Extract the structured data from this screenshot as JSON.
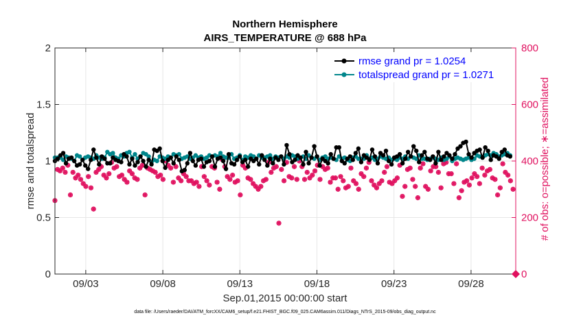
{
  "chart_data": {
    "type": "line",
    "title": "Northern Hemisphere",
    "subtitle": "AIRS_TEMPERATURE @ 688 hPa",
    "xlabel": "Sep.01,2015 00:00:00 start",
    "ylabel_left": "rmse and totalspread",
    "ylabel_right": "# of obs: o=possible; ∗=assimilated",
    "footnote": "data file: /Users/raeder/DAI/ATM_forcXX/CAM6_setup/f.e21.FHIST_BGC.f09_025.CAM6assim.011/Diags_NTrS_2015-09/obs_diag_output.nc",
    "xlim": [
      1.0,
      30.9
    ],
    "ylim_left": [
      0,
      2
    ],
    "ylim_right": [
      0,
      800
    ],
    "x_tick_values": [
      3,
      8,
      13,
      18,
      23,
      28
    ],
    "x_tick_labels": [
      "09/03",
      "09/08",
      "09/13",
      "09/18",
      "09/23",
      "09/28"
    ],
    "y_left_ticks": [
      0,
      0.5,
      1,
      1.5,
      2
    ],
    "y_left_tick_labels": [
      "0",
      "0.5",
      "1",
      "1.5",
      "2"
    ],
    "y_right_ticks": [
      0,
      200,
      400,
      600,
      800
    ],
    "y_right_tick_labels": [
      "0",
      "200",
      "400",
      "600",
      "800"
    ],
    "grid": true,
    "legend_position": "top-right",
    "series": [
      {
        "name": "rmse grand pr = 1.0254",
        "color": "#000000",
        "axis": "left",
        "marker": "filled-circle",
        "values": [
          1.0,
          1.02,
          1.05,
          1.07,
          0.98,
          1.02,
          1.03,
          1.0,
          0.96,
          0.97,
          1.01,
          0.96,
          0.93,
          1.01,
          1.1,
          1.03,
          0.97,
          1.04,
          1.02,
          0.98,
          0.98,
          1.03,
          1.01,
          1.0,
          0.99,
          1.06,
          1.04,
          0.97,
          1.02,
          0.96,
          0.99,
          1.04,
          1.0,
          0.95,
          1.01,
          0.97,
          1.1,
          1.09,
          1.11,
          1.0,
          0.94,
          1.01,
          1.03,
          0.98,
          1.04,
          1.01,
          0.91,
          0.92,
          0.98,
          1.07,
          1.0,
          0.96,
          1.01,
          1.02,
          0.95,
          0.99,
          1.0,
          1.04,
          0.95,
          1.02,
          1.03,
          1.0,
          0.93,
          1.06,
          0.98,
          0.97,
          1.01,
          1.04,
          0.99,
          1.01,
          0.95,
          1.02,
          1.0,
          1.02,
          0.97,
          1.05,
          1.01,
          0.96,
          1.02,
          0.98,
          1.03,
          1.01,
          1.04,
          0.97,
          1.14,
          1.06,
          0.99,
          1.01,
          1.05,
          1.03,
          0.97,
          1.08,
          0.98,
          1.03,
          1.13,
          1.04,
          0.96,
          1.02,
          1.0,
          0.98,
          1.06,
          1.02,
          1.12,
          1.12,
          1.0,
          0.98,
          1.02,
          1.04,
          1.01,
          1.07,
          1.11,
          0.99,
          1.05,
          1.03,
          1.01,
          1.1,
          1.04,
          0.98,
          1.07,
          1.05,
          1.09,
          1.0,
          0.97,
          1.03,
          1.04,
          1.06,
          0.98,
          1.02,
          1.08,
          1.04,
          1.13,
          1.09,
          0.99,
          1.05,
          1.08,
          1.02,
          1.01,
          1.04,
          0.98,
          1.08,
          1.01,
          1.04,
          1.07,
          1.05,
          1.02,
          1.06,
          1.11,
          1.13,
          1.16,
          1.17,
          1.06,
          1.03,
          1.07,
          1.09,
          1.1,
          1.03,
          1.12,
          1.09,
          1.01,
          1.05,
          1.04,
          1.02,
          1.08,
          1.1,
          1.05,
          1.04
        ],
        "x_start": 1.0,
        "x_step": 0.179
      },
      {
        "name": "totalspread grand pr = 1.0271",
        "color": "#00868b",
        "axis": "left",
        "marker": "filled-circle",
        "values": [
          1.03,
          1.03,
          1.03,
          1.01,
          1.04,
          1.03,
          1.02,
          1.0,
          1.05,
          1.04,
          1.01,
          1.03,
          1.04,
          1.03,
          1.02,
          1.05,
          1.03,
          1.02,
          1.03,
          1.08,
          1.06,
          1.07,
          1.03,
          1.02,
          1.05,
          1.04,
          1.07,
          1.08,
          1.03,
          1.06,
          1.02,
          1.04,
          1.07,
          1.06,
          1.04,
          0.99,
          1.01,
          1.0,
          1.04,
          1.03,
          1.02,
          1.04,
          1.03,
          1.06,
          1.05,
          1.06,
          1.02,
          1.03,
          1.04,
          1.02,
          1.03,
          1.05,
          1.03,
          1.04,
          1.02,
          1.03,
          1.05,
          1.04,
          1.05,
          1.04,
          1.07,
          1.04,
          1.03,
          1.03,
          1.06,
          1.02,
          1.03,
          1.05,
          1.01,
          1.04,
          1.03,
          1.05,
          1.04,
          1.02,
          1.05,
          1.03,
          1.03,
          1.04,
          1.05,
          1.02,
          1.04,
          1.03,
          1.04,
          1.02,
          1.04,
          1.03,
          1.05,
          1.04,
          1.02,
          1.03,
          1.04,
          1.02,
          1.05,
          1.03,
          1.02,
          1.04,
          1.01,
          1.03,
          1.04,
          1.02,
          1.03,
          1.02,
          1.01,
          1.04,
          1.02,
          1.03,
          1.01,
          1.0,
          1.03,
          1.04,
          1.02,
          1.02,
          1.02,
          1.05,
          1.02,
          1.03,
          1.01,
          1.02,
          1.04,
          1.03,
          1.02,
          1.03,
          1.01,
          1.02,
          1.01,
          1.03,
          1.02,
          1.04,
          1.02,
          1.04,
          1.03,
          1.02,
          1.05,
          1.02,
          1.02,
          1.01,
          1.02,
          1.03,
          1.02,
          1.01,
          1.03,
          1.01,
          1.02,
          1.04,
          1.0,
          1.02,
          1.03,
          1.02,
          1.01,
          1.02,
          1.03,
          1.01,
          1.02,
          1.05,
          1.04,
          1.03,
          1.05,
          1.06,
          1.05,
          1.07,
          1.06,
          1.04,
          1.05,
          1.06,
          1.07,
          1.05
        ],
        "x_start": 1.0,
        "x_step": 0.179
      },
      {
        "name": "# of obs possible / assimilated",
        "color": "#e0115f",
        "axis": "right",
        "marker": "circle-and-asterisk",
        "values": [
          260,
          370,
          365,
          375,
          360,
          385,
          280,
          360,
          340,
          350,
          335,
          320,
          310,
          345,
          305,
          230,
          360,
          370,
          380,
          350,
          340,
          355,
          395,
          375,
          380,
          345,
          350,
          335,
          325,
          365,
          355,
          340,
          335,
          375,
          385,
          280,
          375,
          370,
          365,
          360,
          345,
          350,
          335,
          400,
          385,
          375,
          325,
          380,
          340,
          330,
          355,
          345,
          330,
          330,
          320,
          325,
          310,
          380,
          345,
          330,
          315,
          380,
          375,
          325,
          300,
          405,
          380,
          345,
          335,
          350,
          325,
          330,
          280,
          385,
          375,
          340,
          335,
          320,
          310,
          300,
          310,
          330,
          335,
          395,
          360,
          375,
          380,
          180,
          370,
          330,
          395,
          345,
          340,
          380,
          335,
          400,
          380,
          335,
          360,
          340,
          350,
          365,
          385,
          335,
          380,
          370,
          375,
          325,
          340,
          340,
          300,
          345,
          330,
          305,
          310,
          375,
          330,
          320,
          300,
          355,
          345,
          375,
          395,
          330,
          315,
          305,
          320,
          330,
          360,
          380,
          325,
          320,
          330,
          340,
          385,
          275,
          310,
          370,
          375,
          335,
          310,
          270,
          375,
          390,
          310,
          300,
          365,
          380,
          380,
          360,
          305,
          390,
          395,
          355,
          355,
          320,
          390,
          270,
          295,
          325,
          330,
          315,
          340,
          355,
          345,
          320,
          375,
          350,
          365,
          370,
          340,
          335,
          280,
          305,
          390,
          360,
          350,
          330,
          300,
          290
        ],
        "x_start": 1.0,
        "x_step": 0.167
      }
    ]
  }
}
